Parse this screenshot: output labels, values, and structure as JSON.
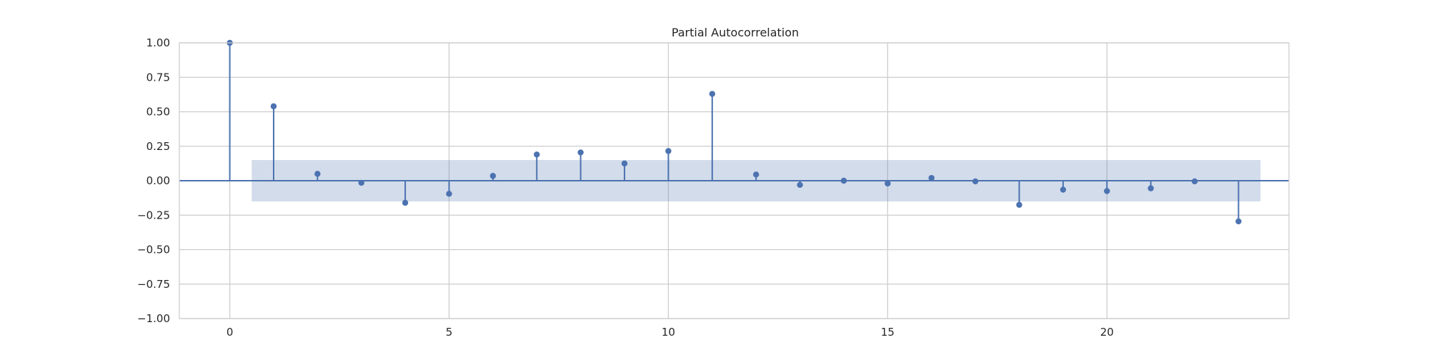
{
  "chart_data": {
    "type": "stem",
    "title": "Partial Autocorrelation",
    "xlabel": "",
    "ylabel": "",
    "xlim": [
      -1.15,
      24.15
    ],
    "ylim": [
      -1.0,
      1.0
    ],
    "grid": true,
    "xticks": [
      0,
      5,
      10,
      15,
      20
    ],
    "yticks": [
      1.0,
      0.75,
      0.5,
      0.25,
      0.0,
      -0.25,
      -0.5,
      -0.75,
      -1.0
    ],
    "ytick_labels": [
      "1.00",
      "0.75",
      "0.50",
      "0.25",
      "0.00",
      "−0.25",
      "−0.50",
      "−0.75",
      "−1.00"
    ],
    "series": [
      {
        "lags": [
          0,
          1,
          2,
          3,
          4,
          5,
          6,
          7,
          8,
          9,
          10,
          11,
          12,
          13,
          14,
          15,
          16,
          17,
          18,
          19,
          20,
          21,
          22,
          23
        ],
        "values": [
          1.0,
          0.54,
          0.05,
          -0.015,
          -0.16,
          -0.095,
          0.035,
          0.19,
          0.205,
          0.125,
          0.215,
          0.63,
          0.045,
          -0.03,
          0.0,
          -0.02,
          0.02,
          -0.005,
          -0.175,
          -0.065,
          -0.075,
          -0.055,
          -0.005,
          -0.295
        ]
      }
    ],
    "confidence_band": {
      "x_from": 0.5,
      "x_to": 23.5,
      "lower": -0.15,
      "upper": 0.15
    },
    "colors": {
      "stem": "#4c72b0",
      "band": "#4c72b0",
      "grid": "#cccccc",
      "frame": "#cccccc"
    }
  }
}
